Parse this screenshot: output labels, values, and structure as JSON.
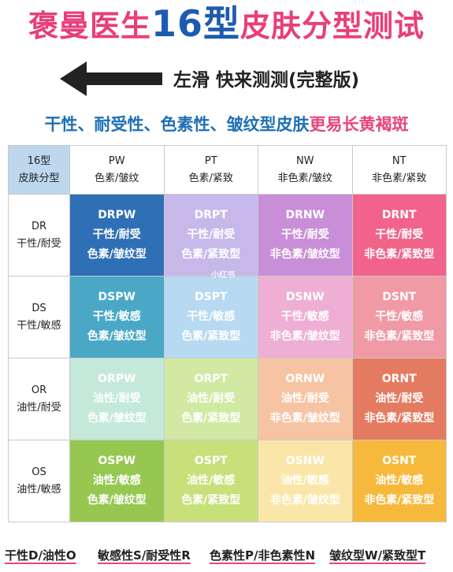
{
  "title": {
    "part1": "褒曼医生",
    "part2": "16型",
    "part3": "皮肤分型测试"
  },
  "swipe_hint": "左滑  快来测测(完整版)",
  "subtitle": {
    "main": "干性、耐受性、色素性、皱纹型皮肤",
    "highlight": "更易长黄褐斑"
  },
  "corner": {
    "line1": "16型",
    "line2": "皮肤分型"
  },
  "columns": [
    {
      "code": "PW",
      "desc": "色素/皱纹"
    },
    {
      "code": "PT",
      "desc": "色素/紧致"
    },
    {
      "code": "NW",
      "desc": "非色素/皱纹"
    },
    {
      "code": "NT",
      "desc": "非色素/紧致"
    }
  ],
  "rows": [
    {
      "code": "DR",
      "desc": "干性/耐受",
      "cells": [
        {
          "code": "DRPW",
          "l1": "干性/耐受",
          "l2": "色素/皱纹型",
          "color": "#2f6fb6"
        },
        {
          "code": "DRPT",
          "l1": "干性/耐受",
          "l2": "色素/紧致型",
          "color": "#c6b9ea"
        },
        {
          "code": "DRNW",
          "l1": "干性/耐受",
          "l2": "非色素/皱纹型",
          "color": "#c98ed8"
        },
        {
          "code": "DRNT",
          "l1": "干性/耐受",
          "l2": "非色素/紧致型",
          "color": "#f1638b"
        }
      ]
    },
    {
      "code": "DS",
      "desc": "干性/敏感",
      "cells": [
        {
          "code": "DSPW",
          "l1": "干性/敏感",
          "l2": "色素/皱纹型",
          "color": "#4aa8c6"
        },
        {
          "code": "DSPT",
          "l1": "干性/敏感",
          "l2": "色素/紧致型",
          "color": "#b7d9f1"
        },
        {
          "code": "DSNW",
          "l1": "干性/敏感",
          "l2": "非色素/皱纹型",
          "color": "#efaed3"
        },
        {
          "code": "DSNT",
          "l1": "干性/敏感",
          "l2": "非色素/紧致型",
          "color": "#f09aa5"
        }
      ]
    },
    {
      "code": "OR",
      "desc": "油性/耐受",
      "cells": [
        {
          "code": "ORPW",
          "l1": "油性/耐受",
          "l2": "色素/皱纹型",
          "color": "#c4e8d9"
        },
        {
          "code": "ORPT",
          "l1": "油性/耐受",
          "l2": "色素/紧致型",
          "color": "#d2e9a3"
        },
        {
          "code": "ORNW",
          "l1": "油性/耐受",
          "l2": "非色素/皱纹型",
          "color": "#f6c4a3"
        },
        {
          "code": "ORNT",
          "l1": "油性/耐受",
          "l2": "非色素/紧致型",
          "color": "#e47b60"
        }
      ]
    },
    {
      "code": "OS",
      "desc": "油性/敏感",
      "cells": [
        {
          "code": "OSPW",
          "l1": "油性/敏感",
          "l2": "色素/皱纹型",
          "color": "#96c851"
        },
        {
          "code": "OSPT",
          "l1": "油性/敏感",
          "l2": "色素/紧致型",
          "color": "#c8e07a"
        },
        {
          "code": "OSNW",
          "l1": "油性/敏感",
          "l2": "非色素/皱纹型",
          "color": "#fbe6a9"
        },
        {
          "code": "OSNT",
          "l1": "油性/敏感",
          "l2": "非色素/紧致型",
          "color": "#f7b93c"
        }
      ]
    }
  ],
  "watermark": "小红书",
  "legend": [
    "干性D/油性O",
    "敏感性S/耐受性R",
    "色素性P/非色素性N",
    "皱纹型W/紧致型T"
  ],
  "colors": {
    "title_pink": "#ea3d7a",
    "title_blue": "#1e5bb0",
    "subtitle_blue": "#1e6fb5",
    "corner_bg": "#bcd7ee"
  }
}
